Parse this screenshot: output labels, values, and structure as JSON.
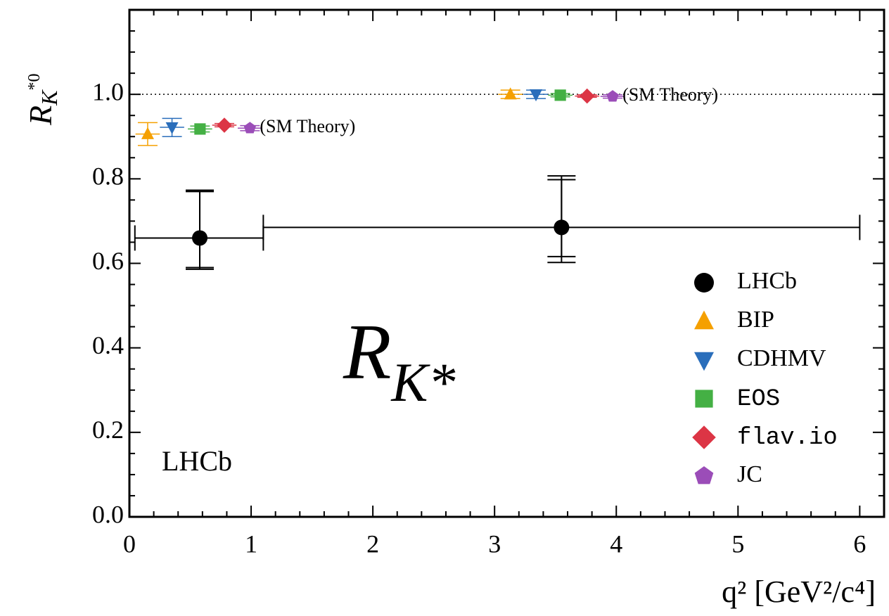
{
  "chart_data": {
    "type": "errorbar",
    "xlabel": "q² [GeV²/c⁴]",
    "ylabel": {
      "base": "R",
      "sub": "K",
      "sup": "*0"
    },
    "big_label": {
      "base": "R",
      "sub": "K*"
    },
    "experiment_label": "LHCb",
    "annotations": [
      "(SM Theory)",
      "(SM Theory)"
    ],
    "hline": 1.0,
    "xlim": [
      0,
      6.2
    ],
    "ylim": [
      0,
      1.2
    ],
    "xticks": [
      0,
      1,
      2,
      3,
      4,
      5,
      6
    ],
    "yticks": [
      {
        "value": 0,
        "label": "0.0"
      },
      {
        "value": 0.2,
        "label": "0.2"
      },
      {
        "value": 0.4,
        "label": "0.4"
      },
      {
        "value": 0.6,
        "label": "0.6"
      },
      {
        "value": 0.8,
        "label": "0.8"
      },
      {
        "value": 1.0,
        "label": "1.0"
      }
    ],
    "xminorticks": [
      0.2,
      0.4,
      0.6,
      0.8,
      1.2,
      1.4,
      1.6,
      1.8,
      2.2,
      2.4,
      2.6,
      2.8,
      3.2,
      3.4,
      3.6,
      3.8,
      4.2,
      4.4,
      4.6,
      4.8,
      5.2,
      5.4,
      5.6,
      5.8,
      6.2
    ],
    "yminorticks": [
      0.05,
      0.1,
      0.15,
      0.25,
      0.3,
      0.35,
      0.45,
      0.5,
      0.55,
      0.65,
      0.7,
      0.75,
      0.85,
      0.9,
      0.95,
      1.05,
      1.1,
      1.15
    ],
    "legend": "lower right",
    "series": [
      {
        "name": "LHCb",
        "color": "#000000",
        "marker": "circle",
        "font": "serif",
        "x": [
          0.578,
          3.55
        ],
        "values": [
          0.66,
          0.685
        ],
        "xerr_minus": [
          0.533,
          2.45
        ],
        "xerr_plus": [
          0.522,
          2.45
        ],
        "yerr_minus": [
          0.07,
          0.069
        ],
        "yerr_plus": [
          0.11,
          0.113
        ],
        "yerr_total_minus": [
          0.074,
          0.083
        ],
        "yerr_total_plus": [
          0.113,
          0.122
        ]
      },
      {
        "name": "BIP",
        "color": "#f5a000",
        "marker": "triangle-up",
        "font": "serif",
        "x": [
          0.15,
          3.13
        ],
        "values": [
          0.906,
          1.0
        ],
        "xerr_minus": [
          0.1,
          0.1
        ],
        "xerr_plus": [
          0.1,
          0.1
        ],
        "yerr_minus": [
          0.027,
          0.01
        ],
        "yerr_plus": [
          0.027,
          0.01
        ]
      },
      {
        "name": "CDHMV",
        "color": "#2a6ebb",
        "marker": "triangle-down",
        "font": "serif",
        "x": [
          0.35,
          3.34
        ],
        "values": [
          0.922,
          1.0
        ],
        "xerr_minus": [
          0.1,
          0.1
        ],
        "xerr_plus": [
          0.1,
          0.1
        ],
        "yerr_minus": [
          0.022,
          0.01
        ],
        "yerr_plus": [
          0.021,
          0.01
        ]
      },
      {
        "name": "EOS",
        "color": "#44b044",
        "marker": "square",
        "font": "mono",
        "x": [
          0.58,
          3.54
        ],
        "values": [
          0.918,
          0.998
        ],
        "xerr_minus": [
          0.1,
          0.1
        ],
        "xerr_plus": [
          0.1,
          0.1
        ],
        "yerr_minus": [
          0.007,
          0.004
        ],
        "yerr_plus": [
          0.007,
          0.004
        ]
      },
      {
        "name": "flav.io",
        "color": "#dc3545",
        "marker": "diamond",
        "font": "mono",
        "x": [
          0.78,
          3.76
        ],
        "values": [
          0.927,
          0.996
        ],
        "xerr_minus": [
          0.1,
          0.1
        ],
        "xerr_plus": [
          0.1,
          0.1
        ],
        "yerr_minus": [
          0.004,
          0.003
        ],
        "yerr_plus": [
          0.004,
          0.003
        ]
      },
      {
        "name": "JC",
        "color": "#9b4db8",
        "marker": "pentagon",
        "font": "serif",
        "x": [
          0.99,
          3.97
        ],
        "values": [
          0.92,
          0.995
        ],
        "xerr_minus": [
          0.1,
          0.1
        ],
        "xerr_plus": [
          0.1,
          0.1
        ],
        "yerr_minus": [
          0.006,
          0.004
        ],
        "yerr_plus": [
          0.006,
          0.004
        ]
      }
    ]
  }
}
